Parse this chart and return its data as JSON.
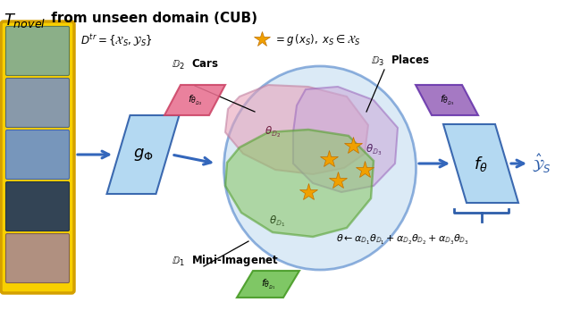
{
  "title_italic": "$\\mathit{T}_{novel}$",
  "title_rest": " from unseen domain (CUB)",
  "dtr_label": "$D^{tr} = \\{\\mathcal{X}_S, \\mathcal{Y}_S\\}$",
  "star_label": "$ = g\\,(x_S), \\; x_S \\in \\mathcal{X}_S$",
  "g_phi_label": "$g_\\Phi$",
  "f_theta_label": "$f_\\theta$",
  "y_hat_label": "$\\hat{\\mathcal{Y}}_S$",
  "theta_eq": "$\\theta \\leftarrow \\alpha_{\\mathbb{D}_1}\\theta_{\\mathbb{D}_1} + \\alpha_{\\mathbb{D}_2}\\theta_{\\mathbb{D}_2} + \\alpha_{\\mathbb{D}_3}\\theta_{\\mathbb{D}_3}$",
  "d1_label": "$\\mathbb{D}_1$  Mini-Imagenet",
  "d2_label": "$\\mathbb{D}_2$  Cars",
  "d3_label": "$\\mathbb{D}_3$  Places",
  "f_d1_label": "$f_{\\theta_{\\mathbb{D}_1}}$",
  "f_d2_label": "$f_{\\theta_{\\mathbb{D}_2}}$",
  "f_d3_label": "$f_{\\theta_{\\mathbb{D}_3}}$",
  "theta_d1": "$\\theta_{\\mathbb{D}_1}$",
  "theta_d2": "$\\theta_{\\mathbb{D}_2}$",
  "theta_d3": "$\\theta_{\\mathbb{D}_3}$",
  "bg_color": "#ffffff",
  "blue_dark": "#2E5EAA",
  "blue_arrow": "#3366BB",
  "light_blue_box": "#AED6F1",
  "light_blue_blob": "#C5DCF0",
  "pink_blob": "#E8A0B8",
  "purple_blob": "#C9A8D8",
  "green_blob": "#8DC86A",
  "orange_star": "#F0A000",
  "yellow_border": "#F5C518",
  "green_box_color": "#6DC050",
  "pink_box_color": "#E87090",
  "purple_box_color": "#9966BB"
}
